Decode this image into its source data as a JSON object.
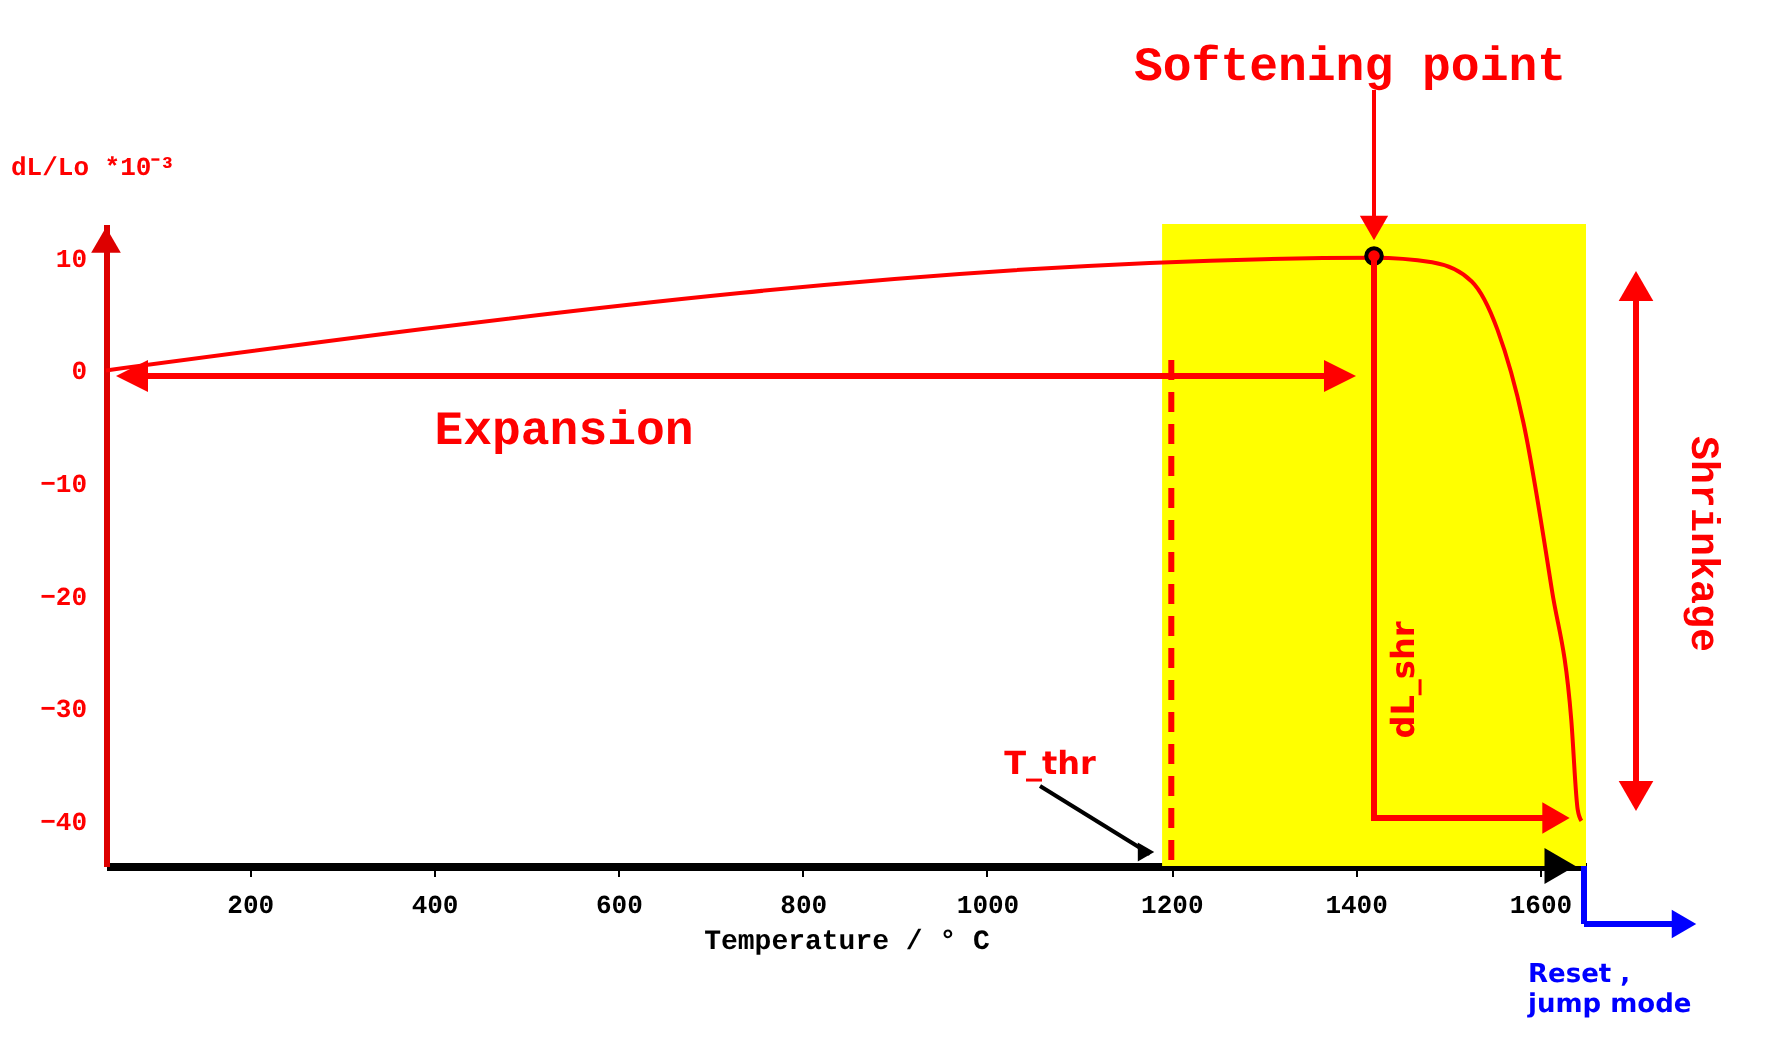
{
  "chart_data": {
    "type": "line",
    "xlabel": "Temperature / ° C",
    "ylabel": "dL/Lo *10⁻³",
    "xlim": [
      44,
      1650
    ],
    "xticks": [
      200,
      400,
      600,
      800,
      1000,
      1200,
      1400,
      1600
    ],
    "ylim": [
      -44,
      13
    ],
    "yticks": [
      10,
      0,
      -10,
      -20,
      -30,
      -40
    ],
    "series": [
      {
        "color": "#ff0000",
        "x": [
          44,
          1420,
          1483,
          1526,
          1554,
          1582,
          1613,
          1634,
          1641,
          1645
        ],
        "values": [
          0,
          10,
          9.6,
          7.9,
          3.6,
          -4.6,
          -19.5,
          -31,
          -39,
          -40
        ]
      }
    ],
    "bands": [
      {
        "axis": "x",
        "from": 1190,
        "to": 1650,
        "color": "#ffff00"
      }
    ],
    "ref_lines": [
      {
        "axis": "x",
        "value": 1200,
        "color": "#ff0000",
        "line_style": "dashed"
      }
    ],
    "annotations": [
      "Softening point",
      "T_thr",
      "Expansion",
      "dL_shr",
      "Shrinkage",
      "Reset ,\njump mode"
    ],
    "marker": "none",
    "line_style": "solid",
    "grid": false
  }
}
